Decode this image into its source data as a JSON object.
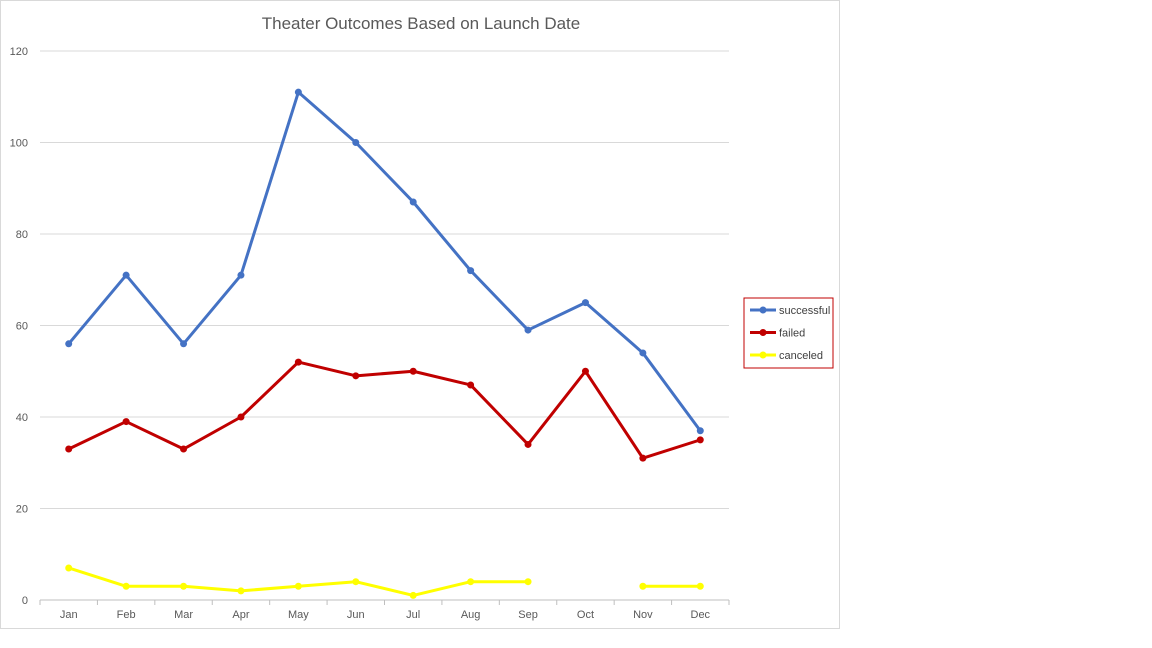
{
  "chart_data": {
    "type": "line",
    "title": "Theater Outcomes Based on Launch Date",
    "xlabel": "",
    "ylabel": "",
    "categories": [
      "Jan",
      "Feb",
      "Mar",
      "Apr",
      "May",
      "Jun",
      "Jul",
      "Aug",
      "Sep",
      "Oct",
      "Nov",
      "Dec"
    ],
    "ylim": [
      0,
      120
    ],
    "yticks": [
      0,
      20,
      40,
      60,
      80,
      100,
      120
    ],
    "grid": true,
    "legend_position": "right",
    "series": [
      {
        "name": "successful",
        "color": "#4472C4",
        "values": [
          56,
          71,
          56,
          71,
          111,
          100,
          87,
          72,
          59,
          65,
          54,
          37
        ]
      },
      {
        "name": "failed",
        "color": "#C00000",
        "values": [
          33,
          39,
          33,
          40,
          52,
          49,
          50,
          47,
          34,
          50,
          31,
          35
        ]
      },
      {
        "name": "canceled",
        "color": "#FFFF00",
        "values": [
          7,
          3,
          3,
          2,
          3,
          4,
          1,
          4,
          4,
          null,
          3,
          3
        ]
      }
    ]
  }
}
